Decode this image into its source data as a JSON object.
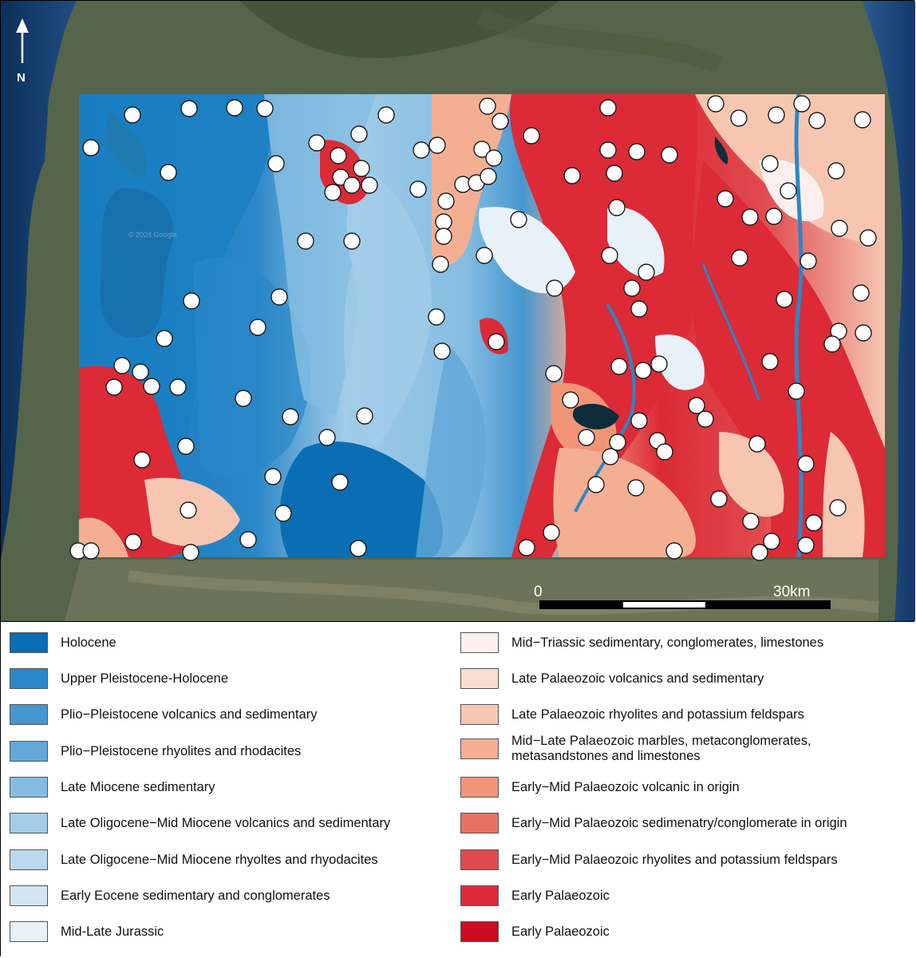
{
  "north_arrow": {
    "label": "N"
  },
  "scale_bar": {
    "start_label": "0",
    "end_label": "30km"
  },
  "watermark": "© 2024 Google",
  "legend": {
    "left": [
      {
        "label": "Holocene",
        "color": "#0a6eb4"
      },
      {
        "label": "Upper Pleistocene-Holocene",
        "color": "#2a87c8"
      },
      {
        "label": "Plio−Pleistocene volcanics and sedimentary",
        "color": "#4597cf"
      },
      {
        "label": "Plio−Pleistocene rhyolites and rhodacites",
        "color": "#62a8d8"
      },
      {
        "label": "Late Miocene sedimentary",
        "color": "#85bde2"
      },
      {
        "label": "Late Oligocene−Mid Miocene volcanics and sedimentary",
        "color": "#a2cce8"
      },
      {
        "label": "Late Oligocene−Mid Miocene rhyoltes and rhyodacites",
        "color": "#bad9ee"
      },
      {
        "label": "Early Eocene sedimentary and conglomerates",
        "color": "#d2e6f3"
      },
      {
        "label": "Mid-Late Jurassic",
        "color": "#e8f1f8"
      }
    ],
    "right": [
      {
        "label": "Mid−Triassic sedimentary, conglomerates, limestones",
        "color": "#fbf0ee"
      },
      {
        "label": "Late Palaeozoic volcanics and sedimentary",
        "color": "#f9ddd3"
      },
      {
        "label": "Late Palaeozoic rhyolites and potassium feldspars",
        "color": "#f6c6b1"
      },
      {
        "label": "Mid−Late Palaeozoic marbles, metaconglomerates, metasandstones and limestones",
        "color": "#f4af93"
      },
      {
        "label": "Early−Mid Palaeozoic volcanic in origin",
        "color": "#f09677"
      },
      {
        "label": "Early−Mid Palaeozoic sedimenatry/conglomerate in origin",
        "color": "#e87261"
      },
      {
        "label": "Early−Mid Palaeozoic rhyolites and potassium feldspars",
        "color": "#e04a4f"
      },
      {
        "label": "Early Palaeozoic",
        "color": "#dc2a36"
      },
      {
        "label": "Early Palaeozoic",
        "color": "#cc0c1e"
      }
    ]
  }
}
